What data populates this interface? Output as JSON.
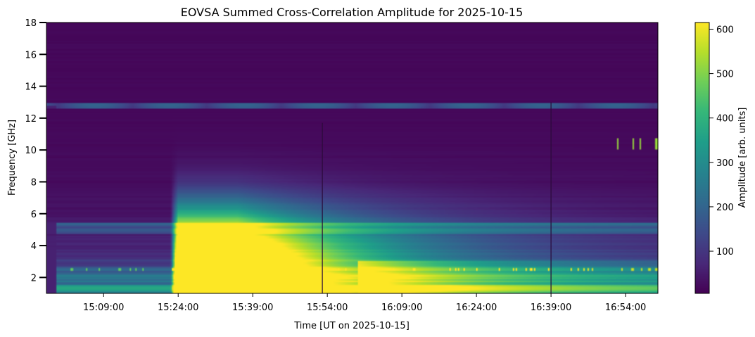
{
  "chart_data": {
    "type": "heatmap",
    "title": "EOVSA Summed Cross-Correlation Amplitude for 2025-10-15",
    "xlabel": "Time [UT on 2025-10-15]",
    "ylabel": "Frequency [GHz]",
    "x_start": "14:57:30",
    "x_end": "17:00:30",
    "x_tick_labels": [
      "15:09:00",
      "15:24:00",
      "15:39:00",
      "15:54:00",
      "16:09:00",
      "16:24:00",
      "16:39:00",
      "16:54:00"
    ],
    "x_tick_minutes": [
      69,
      84,
      99,
      114,
      129,
      144,
      159,
      174
    ],
    "x_range_minutes": [
      57.5,
      180.5
    ],
    "ylim": [
      1.0,
      18.0
    ],
    "y_ticks": [
      2,
      4,
      6,
      8,
      10,
      12,
      14,
      16,
      18
    ],
    "y_tick_labels": [
      "2",
      "4",
      "6",
      "8",
      "10",
      "12",
      "14",
      "16",
      "18"
    ],
    "colorbar": {
      "label": "Amplitude [arb. units]",
      "range": [
        5,
        615
      ],
      "ticks": [
        100,
        200,
        300,
        400,
        500,
        600
      ],
      "tick_labels": [
        "100",
        "200",
        "300",
        "400",
        "500",
        "600"
      ],
      "colormap": "viridis"
    },
    "features": {
      "flare_peak_minutes": [
        84,
        96
      ],
      "flare_peak_frequency_ghz": [
        1.0,
        6.0
      ],
      "flare_peak_amplitude": 615,
      "background_low_freq_amplitude": 280,
      "rfi_band_ghz": 12.8,
      "data_gaps_minutes": [
        113,
        159
      ]
    }
  }
}
